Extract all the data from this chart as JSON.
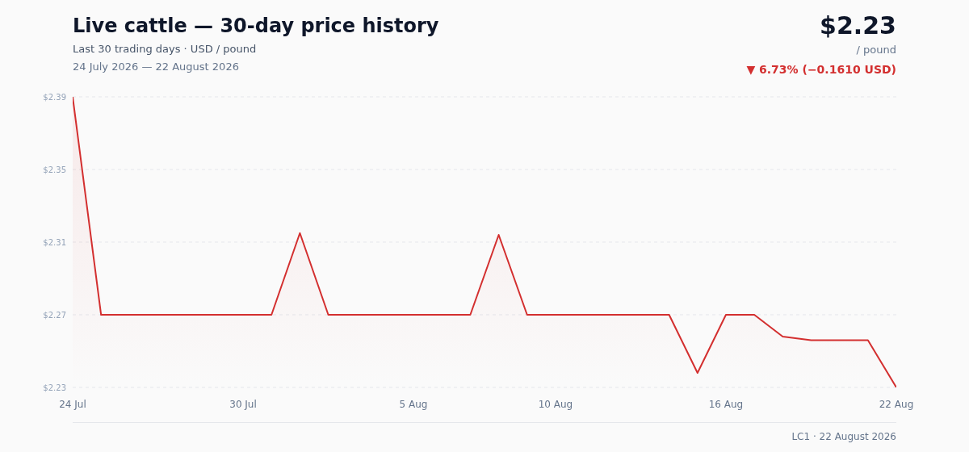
{
  "chart_data": {
    "type": "area",
    "title": "Live cattle — 30-day price history",
    "subtitle": "Last 30 trading days · USD / pound",
    "annotations": [
      "24 July 2026 — 22 August 2026",
      "$2.23",
      "/ pound",
      "▼ 6.73% (−0.1610 USD)",
      "LC1 · 22 August 2026"
    ],
    "x": [
      "2026-07-24",
      "2026-07-25",
      "2026-07-26",
      "2026-07-27",
      "2026-07-28",
      "2026-07-29",
      "2026-07-30",
      "2026-07-31",
      "2026-08-01",
      "2026-08-02",
      "2026-08-03",
      "2026-08-04",
      "2026-08-05",
      "2026-08-06",
      "2026-08-07",
      "2026-08-08",
      "2026-08-09",
      "2026-08-10",
      "2026-08-11",
      "2026-08-12",
      "2026-08-13",
      "2026-08-14",
      "2026-08-15",
      "2026-08-16",
      "2026-08-17",
      "2026-08-18",
      "2026-08-19",
      "2026-08-20",
      "2026-08-21",
      "2026-08-22"
    ],
    "values": [
      2.39,
      2.27,
      2.27,
      2.27,
      2.27,
      2.27,
      2.27,
      2.27,
      2.315,
      2.27,
      2.27,
      2.27,
      2.27,
      2.27,
      2.27,
      2.314,
      2.27,
      2.27,
      2.27,
      2.27,
      2.27,
      2.27,
      2.238,
      2.27,
      2.27,
      2.258,
      2.256,
      2.256,
      2.256,
      2.23
    ],
    "color": "#d32f2f",
    "xlim": [
      "2026-07-24",
      "2026-08-22"
    ],
    "xticks": [
      {
        "value": "2026-07-24",
        "label": "24 Jul"
      },
      {
        "value": "2026-07-30",
        "label": "30 Jul"
      },
      {
        "value": "2026-08-05",
        "label": "5 Aug"
      },
      {
        "value": "2026-08-10",
        "label": "10 Aug"
      },
      {
        "value": "2026-08-16",
        "label": "16 Aug"
      },
      {
        "value": "2026-08-22",
        "label": "22 Aug"
      }
    ],
    "ylim": [
      2.23,
      2.39
    ],
    "yticks": [
      {
        "value": 2.23,
        "label": "$2.23"
      },
      {
        "value": 2.27,
        "label": "$2.27"
      },
      {
        "value": 2.31,
        "label": "$2.31"
      },
      {
        "value": 2.35,
        "label": "$2.35"
      },
      {
        "value": 2.39,
        "label": "$2.39"
      }
    ],
    "grid": "y"
  }
}
